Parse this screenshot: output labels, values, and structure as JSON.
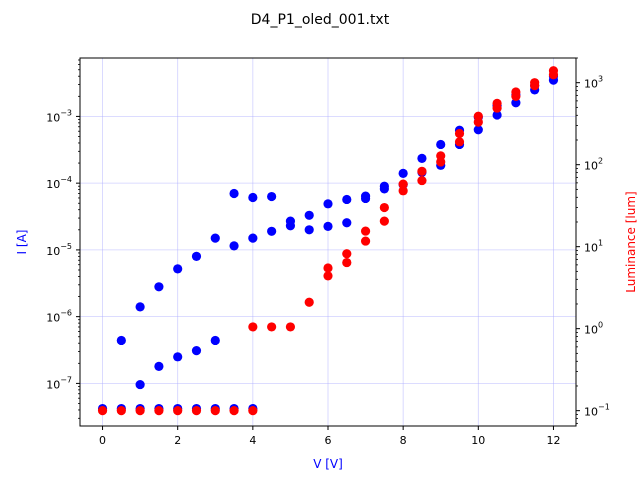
{
  "chart_data": {
    "type": "scatter",
    "title": "D4_P1_oled_001.txt",
    "xlabel": "V [V]",
    "ylabel_left": "I [A]",
    "ylabel_right": "Luminance [lum]",
    "xlim": [
      -0.6,
      12.6
    ],
    "ylim_left": [
      2.3e-08,
      0.0075
    ],
    "ylim_right": [
      0.065,
      2000
    ],
    "yscale_left": "log",
    "yscale_right": "log",
    "grid": true,
    "x_ticks": [
      "0",
      "2",
      "4",
      "6",
      "8",
      "10",
      "12"
    ],
    "left_ticks": [
      {
        "value": 1e-07,
        "mant": "10",
        "exp": "−7"
      },
      {
        "value": 1e-06,
        "mant": "10",
        "exp": "−6"
      },
      {
        "value": 1e-05,
        "mant": "10",
        "exp": "−5"
      },
      {
        "value": 0.0001,
        "mant": "10",
        "exp": "−4"
      },
      {
        "value": 0.001,
        "mant": "10",
        "exp": "−3"
      }
    ],
    "right_ticks": [
      {
        "value": 0.1,
        "mant": "10",
        "exp": "−1"
      },
      {
        "value": 1,
        "mant": "10",
        "exp": "0"
      },
      {
        "value": 10,
        "mant": "10",
        "exp": "1"
      },
      {
        "value": 100,
        "mant": "10",
        "exp": "2"
      },
      {
        "value": 1000,
        "mant": "10",
        "exp": "3"
      }
    ],
    "colors": {
      "current": "#0000ff",
      "luminance": "#ff0000",
      "grid": "#b0b0ff"
    },
    "series": [
      {
        "axis": "left",
        "color": "#0000ff",
        "points": [
          [
            0,
            4.2e-08
          ],
          [
            0.5,
            4.2e-08
          ],
          [
            1,
            4.2e-08
          ],
          [
            1.5,
            4.2e-08
          ],
          [
            2,
            4.2e-08
          ],
          [
            2.5,
            4.2e-08
          ],
          [
            3,
            4.2e-08
          ],
          [
            3.5,
            4.2e-08
          ],
          [
            4,
            4.2e-08
          ],
          [
            0.5,
            4.4e-07
          ],
          [
            1,
            1.4e-06
          ],
          [
            1.5,
            2.8e-06
          ],
          [
            2,
            5.2e-06
          ],
          [
            2.5,
            8e-06
          ],
          [
            3,
            1.5e-05
          ],
          [
            3.5,
            7e-05
          ],
          [
            4,
            6.1e-05
          ],
          [
            4.5,
            6.3e-05
          ],
          [
            5,
            2.7e-05
          ],
          [
            5.5,
            3.3e-05
          ],
          [
            6,
            4.9e-05
          ],
          [
            6.5,
            5.7e-05
          ],
          [
            7,
            6.4e-05
          ],
          [
            7.5,
            9e-05
          ],
          [
            8,
            0.00014
          ],
          [
            8.5,
            0.000235
          ],
          [
            9,
            0.00038
          ],
          [
            9.5,
            0.00062
          ],
          [
            10,
            0.00097
          ],
          [
            10.5,
            0.00145
          ],
          [
            11,
            0.0021
          ],
          [
            11.5,
            0.0029
          ],
          [
            12,
            0.004
          ],
          [
            1,
            9.6e-08
          ],
          [
            1.5,
            1.8e-07
          ],
          [
            2,
            2.5e-07
          ],
          [
            2.5,
            3.1e-07
          ],
          [
            3,
            4.4e-07
          ],
          [
            3.5,
            1.15e-05
          ],
          [
            4,
            1.5e-05
          ],
          [
            4.5,
            1.9e-05
          ],
          [
            5,
            2.3e-05
          ],
          [
            5.5,
            2e-05
          ],
          [
            6,
            2.25e-05
          ],
          [
            6.5,
            2.55e-05
          ],
          [
            7,
            5.9e-05
          ],
          [
            7.5,
            8.2e-05
          ],
          [
            8,
            9.5e-05
          ],
          [
            8.5,
            0.000145
          ],
          [
            9,
            0.000185
          ],
          [
            9.5,
            0.00038
          ],
          [
            10,
            0.00063
          ],
          [
            10.5,
            0.00105
          ],
          [
            11,
            0.0016
          ],
          [
            11.5,
            0.0025
          ],
          [
            12,
            0.0035
          ]
        ]
      },
      {
        "axis": "right",
        "color": "#ff0000",
        "points": [
          [
            0,
            0.1
          ],
          [
            0.5,
            0.1
          ],
          [
            1,
            0.1
          ],
          [
            1.5,
            0.1
          ],
          [
            2,
            0.1
          ],
          [
            2.5,
            0.1
          ],
          [
            3,
            0.1
          ],
          [
            3.5,
            0.1
          ],
          [
            4,
            0.1
          ],
          [
            4,
            1.05
          ],
          [
            4.5,
            1.05
          ],
          [
            5,
            1.05
          ],
          [
            5.5,
            2.1
          ],
          [
            6,
            4.4
          ],
          [
            6,
            5.5
          ],
          [
            6.5,
            6.4
          ],
          [
            6.5,
            8.2
          ],
          [
            7,
            11.7
          ],
          [
            7,
            15.5
          ],
          [
            7.5,
            20.5
          ],
          [
            7.5,
            30
          ],
          [
            8,
            48
          ],
          [
            8,
            58
          ],
          [
            8.5,
            64
          ],
          [
            8.5,
            83
          ],
          [
            9,
            108
          ],
          [
            9,
            128
          ],
          [
            9.5,
            190
          ],
          [
            9.5,
            240
          ],
          [
            10,
            330
          ],
          [
            10,
            390
          ],
          [
            10.5,
            490
          ],
          [
            10.5,
            560
          ],
          [
            11,
            680
          ],
          [
            11,
            770
          ],
          [
            11.5,
            920
          ],
          [
            11.5,
            1000
          ],
          [
            12,
            1250
          ],
          [
            12,
            1400
          ]
        ]
      }
    ]
  }
}
